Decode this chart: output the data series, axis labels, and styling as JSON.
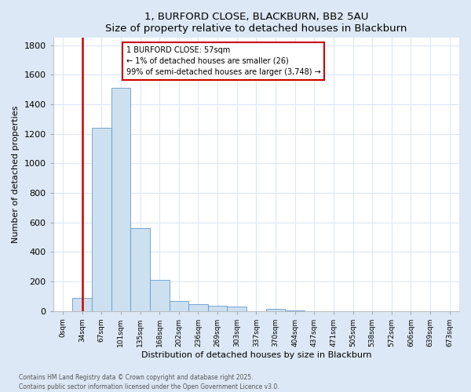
{
  "title": "1, BURFORD CLOSE, BLACKBURN, BB2 5AU",
  "subtitle": "Size of property relative to detached houses in Blackburn",
  "xlabel": "Distribution of detached houses by size in Blackburn",
  "ylabel": "Number of detached properties",
  "bin_labels": [
    "0sqm",
    "34sqm",
    "67sqm",
    "101sqm",
    "135sqm",
    "168sqm",
    "202sqm",
    "236sqm",
    "269sqm",
    "303sqm",
    "337sqm",
    "370sqm",
    "404sqm",
    "437sqm",
    "471sqm",
    "505sqm",
    "538sqm",
    "572sqm",
    "606sqm",
    "639sqm",
    "673sqm"
  ],
  "bar_heights": [
    0,
    90,
    1240,
    1510,
    560,
    210,
    65,
    45,
    35,
    30,
    0,
    15,
    5,
    0,
    0,
    0,
    0,
    0,
    0,
    0,
    0
  ],
  "bar_color": "#cce0f0",
  "bar_edge_color": "#6699cc",
  "annotation_text": "1 BURFORD CLOSE: 57sqm\n← 1% of detached houses are smaller (26)\n99% of semi-detached houses are larger (3,748) →",
  "annotation_box_facecolor": "#ffffff",
  "annotation_box_edgecolor": "#cc0000",
  "property_vline_color": "#cc0000",
  "property_vline_x": 1.5,
  "ylim": [
    0,
    1850
  ],
  "yticks": [
    0,
    200,
    400,
    600,
    800,
    1000,
    1200,
    1400,
    1600,
    1800
  ],
  "bg_color": "#dce8f5",
  "plot_bg_color": "#ffffff",
  "grid_color": "#dce8f5",
  "footer_line1": "Contains HM Land Registry data © Crown copyright and database right 2025.",
  "footer_line2": "Contains public sector information licensed under the Open Government Licence v3.0."
}
